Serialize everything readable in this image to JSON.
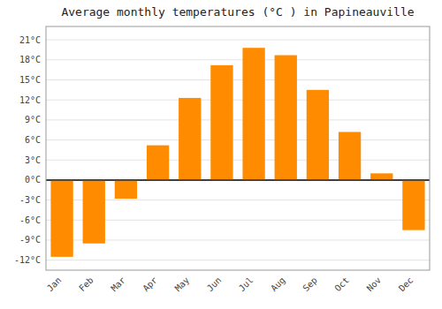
{
  "chart_data": {
    "type": "bar",
    "title": "Average monthly temperatures (°C ) in Papineauville",
    "categories": [
      "Jan",
      "Feb",
      "Mar",
      "Apr",
      "May",
      "Jun",
      "Jul",
      "Aug",
      "Sep",
      "Oct",
      "Nov",
      "Dec"
    ],
    "values": [
      -11.5,
      -9.5,
      -2.8,
      5.2,
      12.3,
      17.2,
      19.8,
      18.7,
      13.5,
      7.2,
      1.0,
      -7.5
    ],
    "color": "#FF8C00",
    "ylim": [
      -13.5,
      23
    ],
    "yticks": [
      {
        "value": -12,
        "label": "-12°C"
      },
      {
        "value": -9,
        "label": "-9°C"
      },
      {
        "value": -6,
        "label": "-6°C"
      },
      {
        "value": -3,
        "label": "-3°C"
      },
      {
        "value": 0,
        "label": "0°C"
      },
      {
        "value": 3,
        "label": "3°C"
      },
      {
        "value": 6,
        "label": "6°C"
      },
      {
        "value": 9,
        "label": "9°C"
      },
      {
        "value": 12,
        "label": "12°C"
      },
      {
        "value": 15,
        "label": "15°C"
      },
      {
        "value": 18,
        "label": "18°C"
      },
      {
        "value": 21,
        "label": "21°C"
      }
    ],
    "grid": true
  }
}
